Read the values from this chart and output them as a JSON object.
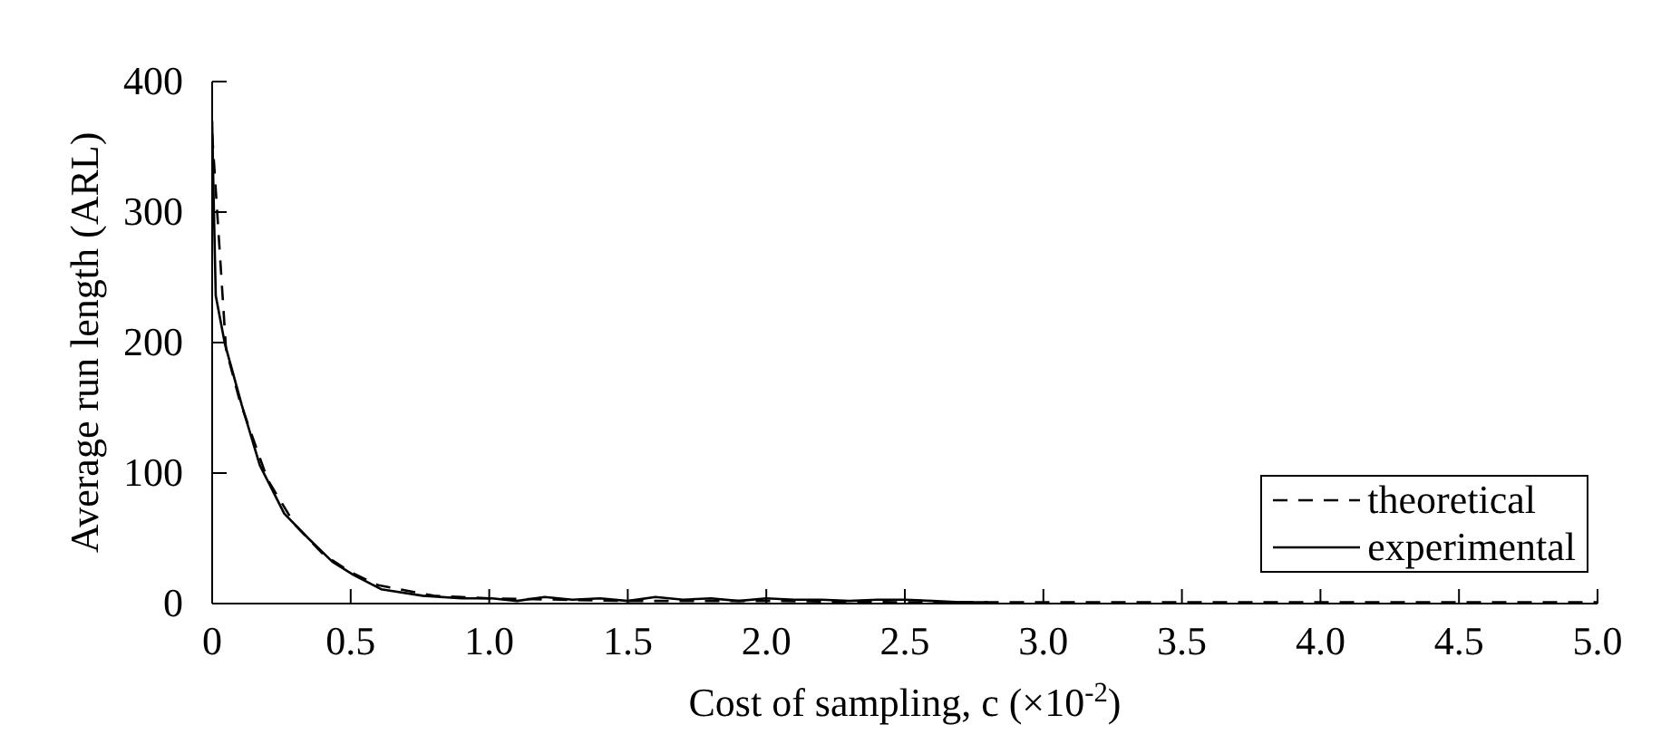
{
  "chart_data": {
    "type": "line",
    "xlabel": "Cost of sampling, c (×10$^{-2}$)",
    "ylabel": "Average run length (ARL)",
    "xlim": [
      0,
      5
    ],
    "ylim": [
      0,
      400
    ],
    "xticks": [
      0,
      {
        "value": 0.5,
        "label": "0.5"
      },
      {
        "value": 1,
        "label": "1.0"
      },
      {
        "value": 1.5,
        "label": "1.5"
      },
      {
        "value": 2,
        "label": "2.0"
      },
      {
        "value": 2.5,
        "label": "2.5"
      },
      {
        "value": 3,
        "label": "3.0"
      },
      {
        "value": 3.5,
        "label": "3.5"
      },
      {
        "value": 4,
        "label": "4.0"
      },
      {
        "value": 4.5,
        "label": "4.5"
      },
      {
        "value": 5,
        "label": "5.0"
      }
    ],
    "yticks": [
      0,
      100,
      200,
      300,
      400
    ],
    "grid": false,
    "legend": "bottom right",
    "marker": "none",
    "series": [
      {
        "name": "theoretical",
        "color": "#000000",
        "line_style": "dashed",
        "x": [
          0,
          0.05,
          0.1,
          0.2,
          0.3,
          0.4,
          0.5,
          0.6,
          0.8,
          1.0,
          1.5,
          2.0,
          2.5,
          3.0,
          3.5,
          4.0,
          4.5,
          5.0
        ],
        "values": [
          360,
          195,
          155,
          95,
          60,
          38,
          24,
          14,
          6,
          4,
          2,
          2,
          1,
          1,
          1,
          1,
          1,
          1
        ]
      },
      {
        "name": "experimental",
        "color": "#000000",
        "line_style": "solid",
        "x": [
          0,
          0.005,
          0.013,
          0.046,
          0.107,
          0.172,
          0.26,
          0.347,
          0.434,
          0.51,
          0.61,
          0.76,
          0.9,
          1.01,
          1.1,
          1.2,
          1.3,
          1.4,
          1.5,
          1.6,
          1.7,
          1.8,
          1.9,
          2.0,
          2.1,
          2.2,
          2.3,
          2.4,
          2.5,
          2.6,
          2.7,
          2.8
        ],
        "values": [
          370,
          314,
          236,
          199,
          152,
          106,
          69,
          50,
          32,
          22,
          11,
          6,
          4,
          4,
          2,
          5,
          3,
          4,
          2,
          5,
          3,
          4,
          2,
          4,
          3,
          3,
          2,
          3,
          3,
          2,
          1,
          1
        ]
      }
    ]
  }
}
